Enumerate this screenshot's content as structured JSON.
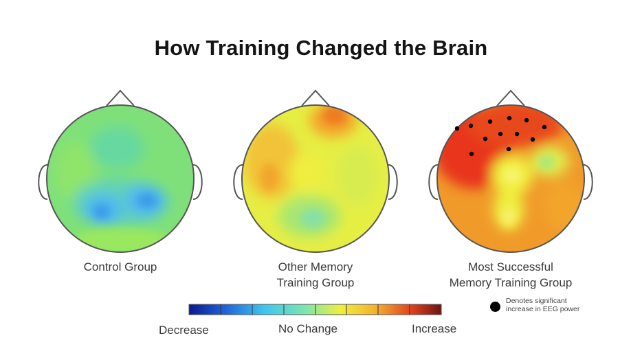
{
  "title": "How Training Changed the Brain",
  "maps": [
    {
      "label_lines": [
        "Control Group"
      ]
    },
    {
      "label_lines": [
        "Other Memory",
        "Training Group"
      ]
    },
    {
      "label_lines": [
        "Most Successful",
        "Memory Training Group"
      ]
    }
  ],
  "color_scale": {
    "low_label": "Decrease",
    "mid_label": "No Change",
    "high_label": "Increase",
    "colors": [
      "#0a1a8c",
      "#1f62d8",
      "#3fc6ef",
      "#7be6b0",
      "#f0ee3c",
      "#f3b130",
      "#e0431c",
      "#6b1414"
    ]
  },
  "legend": {
    "dot_label_lines": [
      "Denotes significant",
      "increase in EEG power"
    ]
  },
  "palette": {
    "green": "#7fe07a",
    "blue": "#4fb8f0",
    "yellow": "#f0ee40",
    "orange": "#f3a52a",
    "red": "#e8341c"
  }
}
